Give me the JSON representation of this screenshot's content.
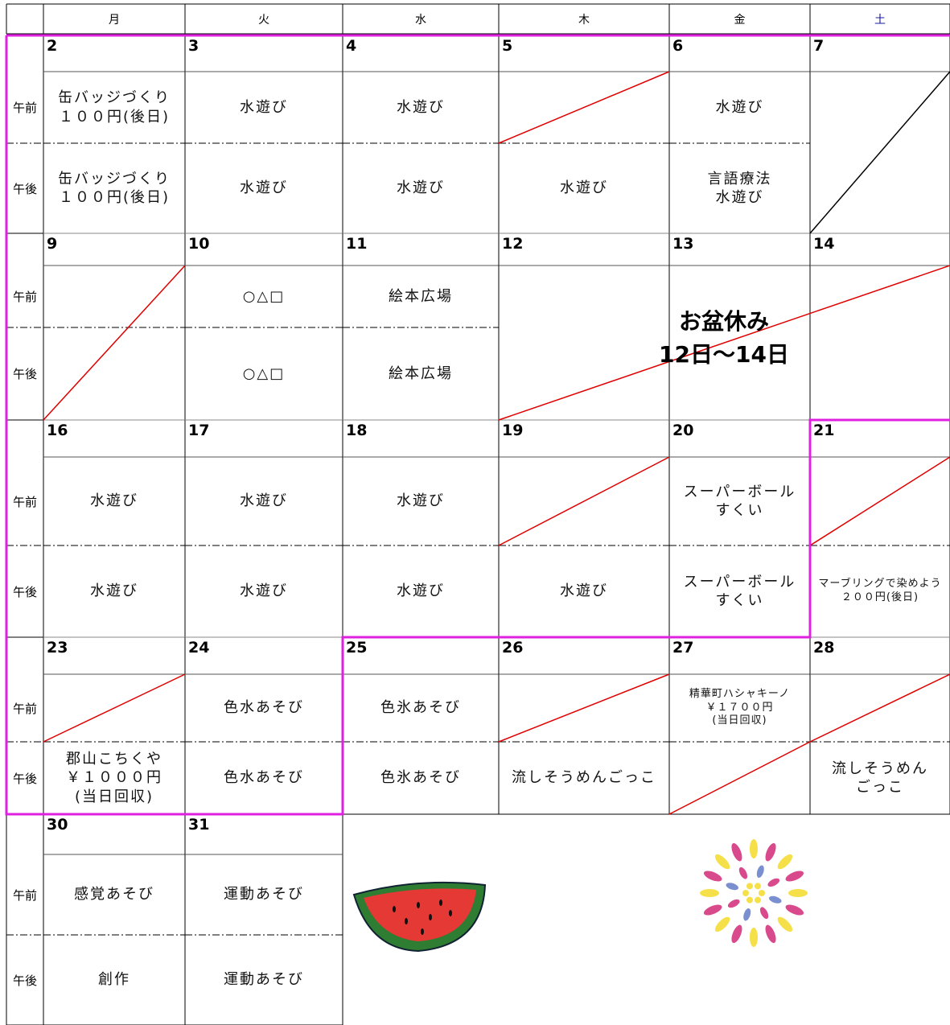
{
  "header": {
    "days": [
      "月",
      "火",
      "水",
      "木",
      "金",
      "土"
    ]
  },
  "period_labels": [
    "午前",
    "午後"
  ],
  "weeks": [
    {
      "dates": [
        2,
        3,
        4,
        5,
        6,
        7
      ],
      "am": [
        [
          "缶バッジづくり",
          "１００円(後日)"
        ],
        [
          "水遊び"
        ],
        [
          "水遊び"
        ],
        null,
        [
          "水遊び"
        ],
        null
      ],
      "pm": [
        [
          "缶バッジづくり",
          "１００円(後日)"
        ],
        [
          "水遊び"
        ],
        [
          "水遊び"
        ],
        [
          "水遊び"
        ],
        [
          "言語療法",
          "水遊び"
        ],
        null
      ]
    },
    {
      "dates": [
        9,
        10,
        11,
        12,
        13,
        14
      ],
      "am": [
        null,
        [
          "○△□"
        ],
        [
          "絵本広場"
        ],
        null,
        null,
        null
      ],
      "pm": [
        null,
        [
          "○△□"
        ],
        [
          "絵本広場"
        ],
        null,
        null,
        null
      ]
    },
    {
      "dates": [
        16,
        17,
        18,
        19,
        20,
        21
      ],
      "am": [
        [
          "水遊び"
        ],
        [
          "水遊び"
        ],
        [
          "水遊び"
        ],
        null,
        [
          "スーパーボール",
          "すくい"
        ],
        null
      ],
      "pm": [
        [
          "水遊び"
        ],
        [
          "水遊び"
        ],
        [
          "水遊び"
        ],
        [
          "水遊び"
        ],
        [
          "スーパーボール",
          "すくい"
        ],
        [
          "マーブリングで染めよう",
          "２００円(後日)"
        ]
      ]
    },
    {
      "dates": [
        23,
        24,
        25,
        26,
        27,
        28
      ],
      "am": [
        null,
        [
          "色水あそび"
        ],
        [
          "色氷あそび"
        ],
        null,
        [
          "精華町ハシャキーノ",
          "￥１７００円",
          "(当日回収)"
        ],
        null
      ],
      "pm": [
        [
          "郡山こちくや",
          "￥１０００円",
          "(当日回収)"
        ],
        [
          "色水あそび"
        ],
        [
          "色氷あそび"
        ],
        [
          "流しそうめんごっこ"
        ],
        null,
        [
          "流しそうめん",
          "ごっこ"
        ]
      ]
    },
    {
      "dates": [
        30,
        31
      ],
      "am": [
        [
          "感覚あそび"
        ],
        [
          "運動あそび"
        ]
      ],
      "pm": [
        [
          "創作"
        ],
        [
          "運動あそび"
        ]
      ]
    }
  ],
  "holiday": {
    "lines": [
      "お盆休み",
      "12日～14日"
    ]
  }
}
